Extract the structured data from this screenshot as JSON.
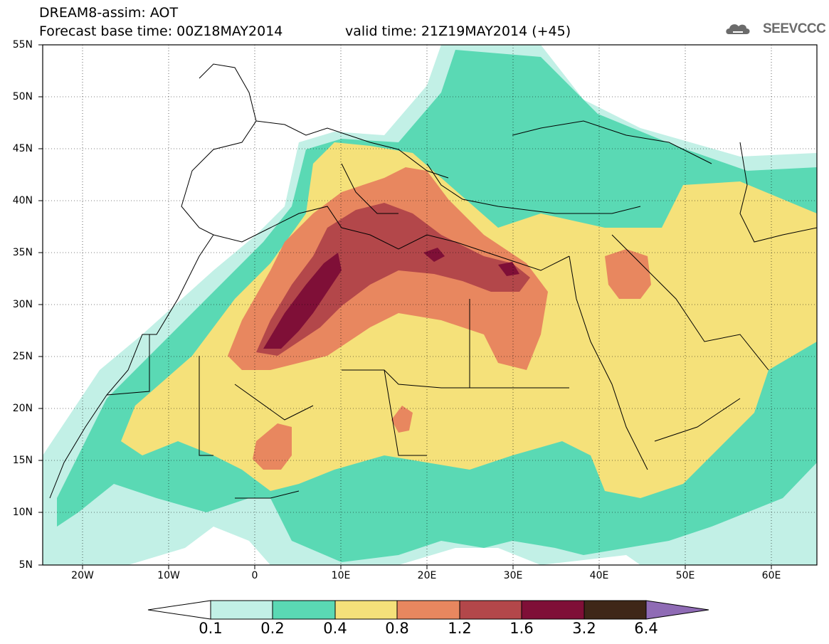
{
  "header": {
    "title": "DREAM8-assim: AOT",
    "base_time": "Forecast base time: 00Z18MAY2014",
    "valid_time": "valid time: 21Z19MAY2014 (+45)",
    "logo_text": "SEEVCCC"
  },
  "map": {
    "lon_range": [
      -25,
      65
    ],
    "lat_range": [
      5,
      55
    ],
    "lat_labels": [
      "55N",
      "50N",
      "45N",
      "40N",
      "35N",
      "30N",
      "25N",
      "20N",
      "15N",
      "10N",
      "5N"
    ],
    "lon_labels": [
      "20W",
      "10W",
      "0",
      "10E",
      "20E",
      "30E",
      "40E",
      "50E",
      "60E"
    ],
    "grid": true
  },
  "colorbar": {
    "levels": [
      "0.1",
      "0.2",
      "0.4",
      "0.8",
      "1.2",
      "1.6",
      "3.2",
      "6.4"
    ],
    "colors": [
      "#c2f0e6",
      "#5ad9b4",
      "#f5e17a",
      "#e8875f",
      "#b3474a",
      "#7f0f37",
      "#3f2718",
      "#8f6bb5"
    ],
    "under_color": "#ffffff"
  },
  "logo_icon": "cloud-logo-icon"
}
